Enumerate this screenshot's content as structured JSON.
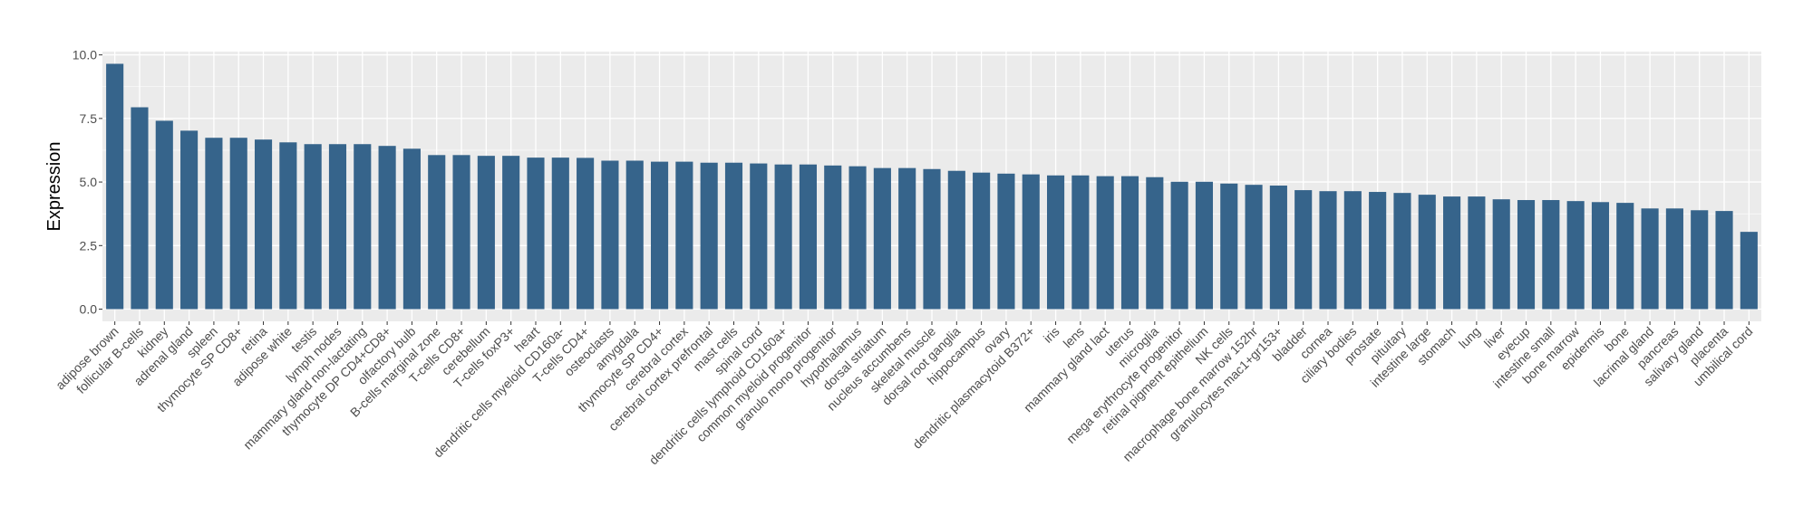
{
  "chart_data": {
    "type": "bar",
    "title": "",
    "xlabel": "",
    "ylabel": "Expression",
    "ylim": [
      -0.48,
      10.13
    ],
    "yticks": [
      0,
      2.5,
      5,
      7.5,
      10
    ],
    "ytick_labels": [
      "0.0",
      "2.5",
      "5.0",
      "7.5",
      "10.0"
    ],
    "grid": true,
    "bar_color": "#36648B",
    "panel_color": "#EBEBEB",
    "categories": [
      "adipose brown",
      "follicular B-cells",
      "kidney",
      "adrenal gland",
      "spleen",
      "thymocyte SP CD8+",
      "retina",
      "adipose white",
      "testis",
      "lymph nodes",
      "mammary gland non-lactating",
      "thymocyte DP CD4+CD8+",
      "olfactory bulb",
      "B-cells marginal zone",
      "T-cells CD8+",
      "cerebellum",
      "T-cells foxP3+",
      "heart",
      "dendritic cells myeloid CD160a-",
      "T-cells CD4+",
      "osteoclasts",
      "amygdala",
      "thymocyte SP CD4+",
      "cerebral cortex",
      "cerebral cortex prefrontal",
      "mast cells",
      "spinal cord",
      "dendritic cells lymphoid CD160a+",
      "common myeloid progenitor",
      "granulo mono progenitor",
      "hypothalamus",
      "dorsal striatum",
      "nucleus accumbens",
      "skeletal muscle",
      "dorsal root ganglia",
      "hippocampus",
      "ovary",
      "dendritic plasmacytoid B372+",
      "iris",
      "lens",
      "mammary gland  lact",
      "uterus",
      "microglia",
      "mega erythrocyte progenitor",
      "retinal pigment epithelium",
      "NK cells",
      "macrophage bone marrow 152hr",
      "granulocytes mac1+gr153+",
      "bladder",
      "cornea",
      "ciliary bodies",
      "prostate",
      "pituitary",
      "intestine large",
      "stomach",
      "lung",
      "liver",
      "eyecup",
      "intestine small",
      "bone marrow",
      "epidermis",
      "bone",
      "lacrimal gland",
      "pancreas",
      "salivary gland",
      "placenta",
      "umbilical cord"
    ],
    "values": [
      9.65,
      7.94,
      7.41,
      7.02,
      6.74,
      6.74,
      6.67,
      6.56,
      6.49,
      6.49,
      6.49,
      6.42,
      6.31,
      6.06,
      6.06,
      6.03,
      6.03,
      5.96,
      5.96,
      5.95,
      5.84,
      5.84,
      5.8,
      5.8,
      5.76,
      5.76,
      5.73,
      5.69,
      5.69,
      5.65,
      5.62,
      5.55,
      5.55,
      5.51,
      5.44,
      5.37,
      5.33,
      5.3,
      5.26,
      5.26,
      5.23,
      5.23,
      5.19,
      5.01,
      5.01,
      4.94,
      4.89,
      4.86,
      4.68,
      4.64,
      4.64,
      4.61,
      4.57,
      4.5,
      4.43,
      4.43,
      4.32,
      4.29,
      4.29,
      4.25,
      4.21,
      4.18,
      3.96,
      3.96,
      3.89,
      3.86,
      3.04
    ]
  }
}
